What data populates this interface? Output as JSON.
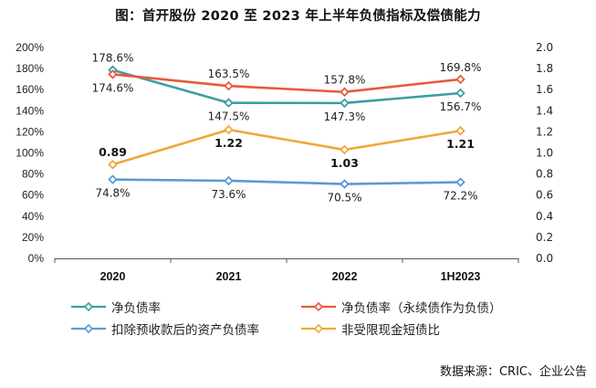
{
  "title": "图：首开股份 2020 至 2023 年上半年负债指标及偿债能力",
  "source": "数据来源：CRIC、企业公告",
  "chart_data": {
    "type": "line",
    "title": "图：首开股份 2020 至 2023 年上半年负债指标及偿债能力",
    "categories": [
      "2020",
      "2021",
      "2022",
      "1H2023"
    ],
    "y_left": {
      "ticks": [
        "0%",
        "20%",
        "40%",
        "60%",
        "80%",
        "100%",
        "120%",
        "140%",
        "160%",
        "180%",
        "200%"
      ],
      "range": [
        0,
        200
      ]
    },
    "y_right": {
      "ticks": [
        "0.0",
        "0.2",
        "0.4",
        "0.6",
        "0.8",
        "1.0",
        "1.2",
        "1.4",
        "1.6",
        "1.8",
        "2.0"
      ],
      "range": [
        0,
        2.0
      ]
    },
    "grid": false,
    "legend_position": "bottom",
    "series": [
      {
        "name": "净负债率",
        "axis": "left",
        "color": "#3B9EA2",
        "values": [
          178.6,
          147.5,
          147.3,
          156.7
        ],
        "labels": [
          "178.6%",
          "147.5%",
          "147.3%",
          "156.7%"
        ],
        "label_pos": [
          "above",
          "below",
          "below",
          "below"
        ],
        "bold": false
      },
      {
        "name": "净负债率（永续债作为负债）",
        "axis": "left",
        "color": "#E8593A",
        "values": [
          174.6,
          163.5,
          157.8,
          169.8
        ],
        "labels": [
          "174.6%",
          "163.5%",
          "157.8%",
          "169.8%"
        ],
        "label_pos": [
          "below",
          "above",
          "above",
          "above"
        ],
        "bold": false
      },
      {
        "name": "扣除预收款后的资产负债率",
        "axis": "left",
        "color": "#5B9BD5",
        "values": [
          74.8,
          73.6,
          70.5,
          72.2
        ],
        "labels": [
          "74.8%",
          "73.6%",
          "70.5%",
          "72.2%"
        ],
        "label_pos": [
          "below",
          "below",
          "below",
          "below"
        ],
        "bold": false
      },
      {
        "name": "非受限现金短债比",
        "axis": "right",
        "color": "#F0A73A",
        "values": [
          0.89,
          1.22,
          1.03,
          1.21
        ],
        "labels": [
          "0.89",
          "1.22",
          "1.03",
          "1.21"
        ],
        "label_pos": [
          "above",
          "below",
          "below",
          "below"
        ],
        "bold": true
      }
    ]
  }
}
